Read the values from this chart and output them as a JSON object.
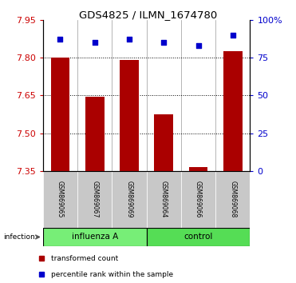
{
  "title": "GDS4825 / ILMN_1674780",
  "samples": [
    "GSM869065",
    "GSM869067",
    "GSM869069",
    "GSM869064",
    "GSM869066",
    "GSM869068"
  ],
  "red_values": [
    7.8,
    7.645,
    7.79,
    7.575,
    7.365,
    7.825
  ],
  "blue_values": [
    87,
    85,
    87,
    85,
    83,
    90
  ],
  "ylim_left": [
    7.35,
    7.95
  ],
  "ylim_right": [
    0,
    100
  ],
  "yticks_left": [
    7.35,
    7.5,
    7.65,
    7.8,
    7.95
  ],
  "yticks_right": [
    0,
    25,
    50,
    75,
    100
  ],
  "ytick_labels_right": [
    "0",
    "25",
    "50",
    "75",
    "100%"
  ],
  "bar_color": "#aa0000",
  "dot_color": "#0000cc",
  "influenza_color": "#77ee77",
  "control_color": "#55dd55",
  "bar_bottom": 7.35,
  "legend_red_label": "transformed count",
  "legend_blue_label": "percentile rank within the sample",
  "infection_label": "infection",
  "label_bg": "#c8c8c8",
  "gridline_y": [
    7.5,
    7.65,
    7.8
  ]
}
